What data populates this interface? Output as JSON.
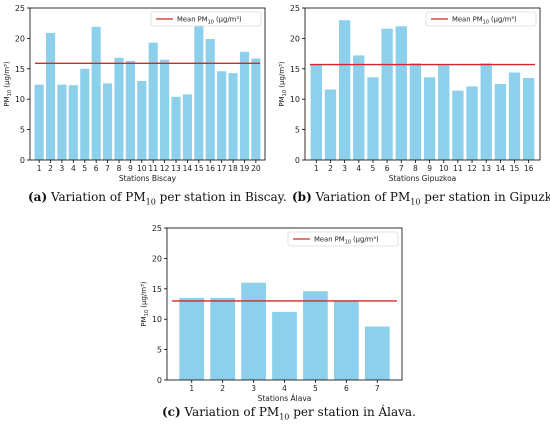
{
  "chart_data": [
    {
      "type": "bar",
      "categories": [
        "1",
        "2",
        "3",
        "4",
        "5",
        "6",
        "7",
        "8",
        "9",
        "10",
        "11",
        "12",
        "13",
        "14",
        "15",
        "16",
        "17",
        "18",
        "19",
        "20"
      ],
      "values": [
        12.4,
        20.9,
        12.4,
        12.3,
        15.0,
        21.9,
        12.6,
        16.8,
        16.3,
        13.0,
        19.3,
        16.5,
        10.4,
        10.8,
        22.0,
        19.9,
        14.6,
        14.3,
        17.8,
        16.7
      ],
      "mean": 15.9,
      "xlabel": "Stations Biscay",
      "ylabel": "PM10 (µg/m³)",
      "ylim": [
        0,
        25
      ],
      "yticks": [
        0,
        5,
        10,
        15,
        20,
        25
      ],
      "legend": "Mean PM10 (µg/m³)",
      "legend_position": "top-right",
      "bar_color": "#87ceeb",
      "mean_color": "#d62728",
      "caption_tag": "(a)",
      "caption_pre": " Variation of PM",
      "caption_sub": "10",
      "caption_post": " per station in Biscay."
    },
    {
      "type": "bar",
      "categories": [
        "1",
        "2",
        "3",
        "4",
        "5",
        "6",
        "7",
        "8",
        "9",
        "10",
        "11",
        "12",
        "13",
        "14",
        "15",
        "16"
      ],
      "values": [
        15.8,
        11.6,
        23.0,
        17.2,
        13.6,
        21.6,
        22.0,
        15.9,
        13.6,
        15.6,
        11.4,
        12.1,
        15.9,
        12.5,
        14.4,
        13.5
      ],
      "mean": 15.7,
      "xlabel": "Stations Gipuzkoa",
      "ylabel": "PM10 (µg/m³)",
      "ylim": [
        0,
        25
      ],
      "yticks": [
        0,
        5,
        10,
        15,
        20,
        25
      ],
      "legend": "Mean PM10 (µg/m³)",
      "legend_position": "top-right",
      "bar_color": "#87ceeb",
      "mean_color": "#d62728",
      "caption_tag": "(b)",
      "caption_pre": " Variation of PM",
      "caption_sub": "10",
      "caption_post": " per station in Gipuzkoa."
    },
    {
      "type": "bar",
      "categories": [
        "1",
        "2",
        "3",
        "4",
        "5",
        "6",
        "7"
      ],
      "values": [
        13.5,
        13.5,
        16.0,
        11.2,
        14.6,
        13.0,
        8.8
      ],
      "mean": 13.0,
      "xlabel": "Stations Álava",
      "ylabel": "PM10 (µg/m³)",
      "ylim": [
        0,
        25
      ],
      "yticks": [
        0,
        5,
        10,
        15,
        20,
        25
      ],
      "legend": "Mean PM10 (µg/m³)",
      "legend_position": "top-right",
      "bar_color": "#87ceeb",
      "mean_color": "#d62728",
      "caption_tag": "(c)",
      "caption_pre": " Variation of PM",
      "caption_sub": "10",
      "caption_post": " per station in Álava."
    }
  ]
}
